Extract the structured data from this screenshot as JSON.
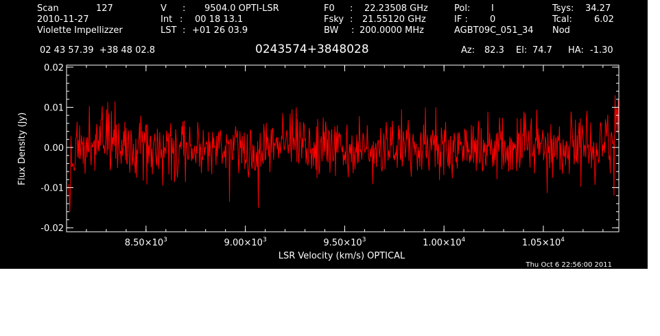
{
  "header": {
    "col1": {
      "scan_label": "Scan",
      "scan_value": "127",
      "date": "2010-11-27",
      "observer": "Violette Impellizzer"
    },
    "col2": {
      "v_label": "V",
      "v_value": "9504.0 OPTI-LSR",
      "int_label": "Int",
      "int_value": "00 18 13.1",
      "lst_label": "LST",
      "lst_value": "+01 26 03.9"
    },
    "col3": {
      "f0_label": "F0",
      "f0_value": "22.23508 GHz",
      "fsky_label": "Fsky",
      "fsky_value": "21.55120 GHz",
      "bw_label": "BW",
      "bw_value": "200.0000 MHz"
    },
    "col4": {
      "pol_label": "Pol:",
      "pol_value": "I",
      "if_label": "IF :",
      "if_value": "0",
      "project": "AGBT09C_051_34"
    },
    "col5": {
      "tsys_label": "Tsys:",
      "tsys_value": "34.27",
      "tcal_label": "Tcal:",
      "tcal_value": "6.02",
      "mode": "Nod"
    },
    "coords": "02 43 57.39  +38 48 02.8",
    "source": "0243574+3848028",
    "az_label": "Az:",
    "az_value": "82.3",
    "el_label": "El:",
    "el_value": "74.7",
    "ha_label": "HA:",
    "ha_value": "-1.30"
  },
  "footer": {
    "timestamp": "Thu Oct  6 22:56:00 2011"
  },
  "colors": {
    "background": "#000000",
    "axes": "#ffffff",
    "trace": "#ff0000"
  },
  "chart_data": {
    "type": "line",
    "title": "",
    "xlabel": "LSR Velocity (km/s) OPTICAL",
    "ylabel": "Flux Density (Jy)",
    "xlim": [
      8100,
      10880
    ],
    "ylim": [
      -0.021,
      0.0205
    ],
    "x_ticks": [
      {
        "value": 8500,
        "mantissa": "8.50",
        "exponent": "3"
      },
      {
        "value": 9000,
        "mantissa": "9.00",
        "exponent": "3"
      },
      {
        "value": 9500,
        "mantissa": "9.50",
        "exponent": "3"
      },
      {
        "value": 10000,
        "mantissa": "1.00",
        "exponent": "4"
      },
      {
        "value": 10500,
        "mantissa": "1.05",
        "exponent": "4"
      }
    ],
    "x_minor_step": 100,
    "y_ticks": [
      {
        "value": 0.02,
        "label": "0.02"
      },
      {
        "value": 0.01,
        "label": "0.01"
      },
      {
        "value": 0.0,
        "label": "0.00"
      },
      {
        "value": -0.01,
        "label": "-0.01"
      },
      {
        "value": -0.02,
        "label": "-0.02"
      }
    ],
    "y_minor_step": 0.002,
    "grid": false,
    "series": [
      {
        "style": "noise",
        "x_start": 8110,
        "x_end": 10880,
        "n_points": 900,
        "seed": 20101127,
        "noise_rms": 0.0037,
        "baseline": [
          [
            8110,
            -0.011
          ],
          [
            8125,
            -0.007
          ],
          [
            8145,
            -0.002
          ],
          [
            8190,
            0.001
          ],
          [
            8500,
            0.0
          ],
          [
            9000,
            0.0
          ],
          [
            9500,
            0.0
          ],
          [
            10000,
            0.0
          ],
          [
            10500,
            0.0
          ],
          [
            10760,
            0.0
          ],
          [
            10800,
            0.001
          ],
          [
            10840,
            0.004
          ],
          [
            10860,
            0.006
          ],
          [
            10880,
            0.008
          ]
        ],
        "spikes": [
          [
            8115,
            -0.016
          ],
          [
            8300,
            0.0095
          ],
          [
            8345,
            0.0115
          ],
          [
            8585,
            -0.0095
          ],
          [
            8920,
            -0.0135
          ],
          [
            9065,
            -0.015
          ],
          [
            9235,
            0.0095
          ],
          [
            9785,
            0.0095
          ],
          [
            9960,
            0.01
          ],
          [
            10410,
            0.0085
          ],
          [
            10862,
            0.013
          ],
          [
            10855,
            -0.012
          ]
        ]
      }
    ]
  }
}
